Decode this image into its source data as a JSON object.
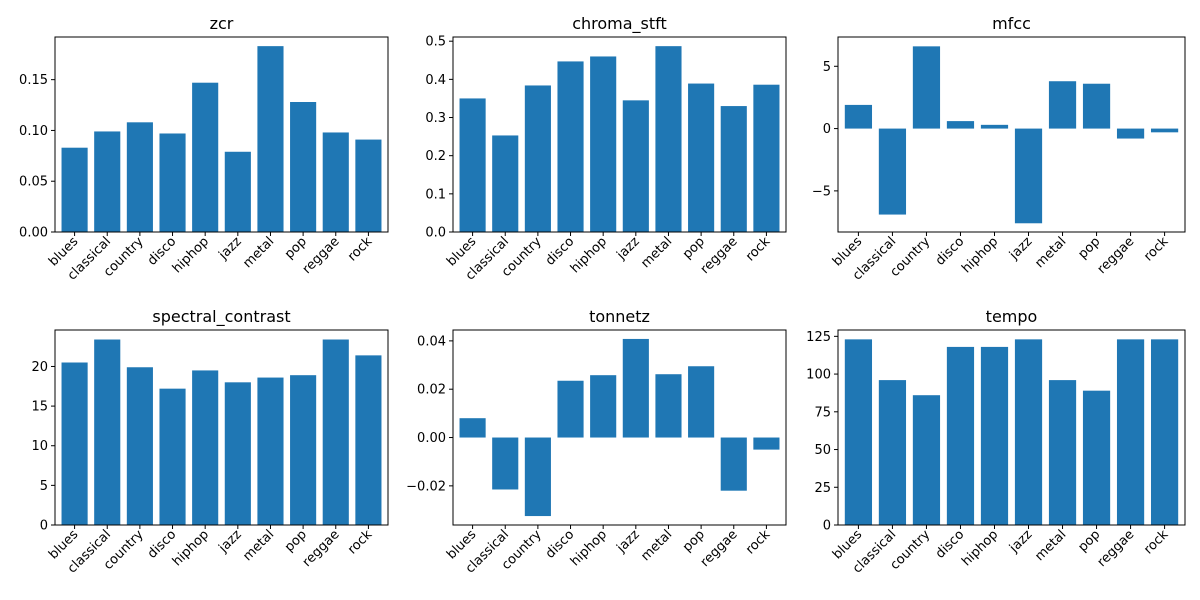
{
  "chart_data": [
    {
      "type": "bar",
      "title": "zcr",
      "categories": [
        "blues",
        "classical",
        "country",
        "disco",
        "hiphop",
        "jazz",
        "metal",
        "pop",
        "reggae",
        "rock"
      ],
      "values": [
        0.083,
        0.099,
        0.108,
        0.097,
        0.147,
        0.079,
        0.183,
        0.128,
        0.098,
        0.091
      ],
      "ylim": [
        0,
        0.192
      ],
      "yticks": [
        0,
        0.05,
        0.1,
        0.15
      ],
      "ytick_labels": [
        "0.00",
        "0.05",
        "0.10",
        "0.15"
      ],
      "xlabel": "",
      "ylabel": "",
      "grid": false,
      "color": "#1f77b4"
    },
    {
      "type": "bar",
      "title": "chroma_stft",
      "categories": [
        "blues",
        "classical",
        "country",
        "disco",
        "hiphop",
        "jazz",
        "metal",
        "pop",
        "reggae",
        "rock"
      ],
      "values": [
        0.35,
        0.253,
        0.384,
        0.447,
        0.46,
        0.345,
        0.487,
        0.389,
        0.33,
        0.386
      ],
      "ylim": [
        0,
        0.511
      ],
      "yticks": [
        0,
        0.1,
        0.2,
        0.3,
        0.4,
        0.5
      ],
      "ytick_labels": [
        "0.0",
        "0.1",
        "0.2",
        "0.3",
        "0.4",
        "0.5"
      ],
      "xlabel": "",
      "ylabel": "",
      "grid": false,
      "color": "#1f77b4"
    },
    {
      "type": "bar",
      "title": "mfcc",
      "categories": [
        "blues",
        "classical",
        "country",
        "disco",
        "hiphop",
        "jazz",
        "metal",
        "pop",
        "reggae",
        "rock"
      ],
      "values": [
        1.9,
        -6.9,
        6.6,
        0.6,
        0.3,
        -7.6,
        3.8,
        3.6,
        -0.8,
        -0.3
      ],
      "ylim": [
        -8.3,
        7.35
      ],
      "yticks": [
        -5,
        0,
        5
      ],
      "ytick_labels": [
        "−5",
        "0",
        "5"
      ],
      "xlabel": "",
      "ylabel": "",
      "grid": false,
      "color": "#1f77b4"
    },
    {
      "type": "bar",
      "title": "spectral_contrast",
      "categories": [
        "blues",
        "classical",
        "country",
        "disco",
        "hiphop",
        "jazz",
        "metal",
        "pop",
        "reggae",
        "rock"
      ],
      "values": [
        20.5,
        23.4,
        19.9,
        17.2,
        19.5,
        18.0,
        18.6,
        18.9,
        23.4,
        21.4
      ],
      "ylim": [
        0,
        24.6
      ],
      "yticks": [
        0,
        5,
        10,
        15,
        20
      ],
      "ytick_labels": [
        "0",
        "5",
        "10",
        "15",
        "20"
      ],
      "xlabel": "",
      "ylabel": "",
      "grid": false,
      "color": "#1f77b4"
    },
    {
      "type": "bar",
      "title": "tonnetz",
      "categories": [
        "blues",
        "classical",
        "country",
        "disco",
        "hiphop",
        "jazz",
        "metal",
        "pop",
        "reggae",
        "rock"
      ],
      "values": [
        0.008,
        -0.0215,
        -0.0325,
        0.0235,
        0.0258,
        0.0408,
        0.0262,
        0.0295,
        -0.022,
        -0.005
      ],
      "ylim": [
        -0.0362,
        0.0445
      ],
      "yticks": [
        -0.02,
        0,
        0.02,
        0.04
      ],
      "ytick_labels": [
        "−0.02",
        "0.00",
        "0.02",
        "0.04"
      ],
      "xlabel": "",
      "ylabel": "",
      "grid": false,
      "color": "#1f77b4"
    },
    {
      "type": "bar",
      "title": "tempo",
      "categories": [
        "blues",
        "classical",
        "country",
        "disco",
        "hiphop",
        "jazz",
        "metal",
        "pop",
        "reggae",
        "rock"
      ],
      "values": [
        123,
        96,
        86,
        118,
        118,
        123,
        96,
        89,
        123,
        123
      ],
      "ylim": [
        0,
        129.2
      ],
      "yticks": [
        0,
        25,
        50,
        75,
        100,
        125
      ],
      "ytick_labels": [
        "0",
        "25",
        "50",
        "75",
        "100",
        "125"
      ],
      "xlabel": "",
      "ylabel": "",
      "grid": false,
      "color": "#1f77b4"
    }
  ]
}
